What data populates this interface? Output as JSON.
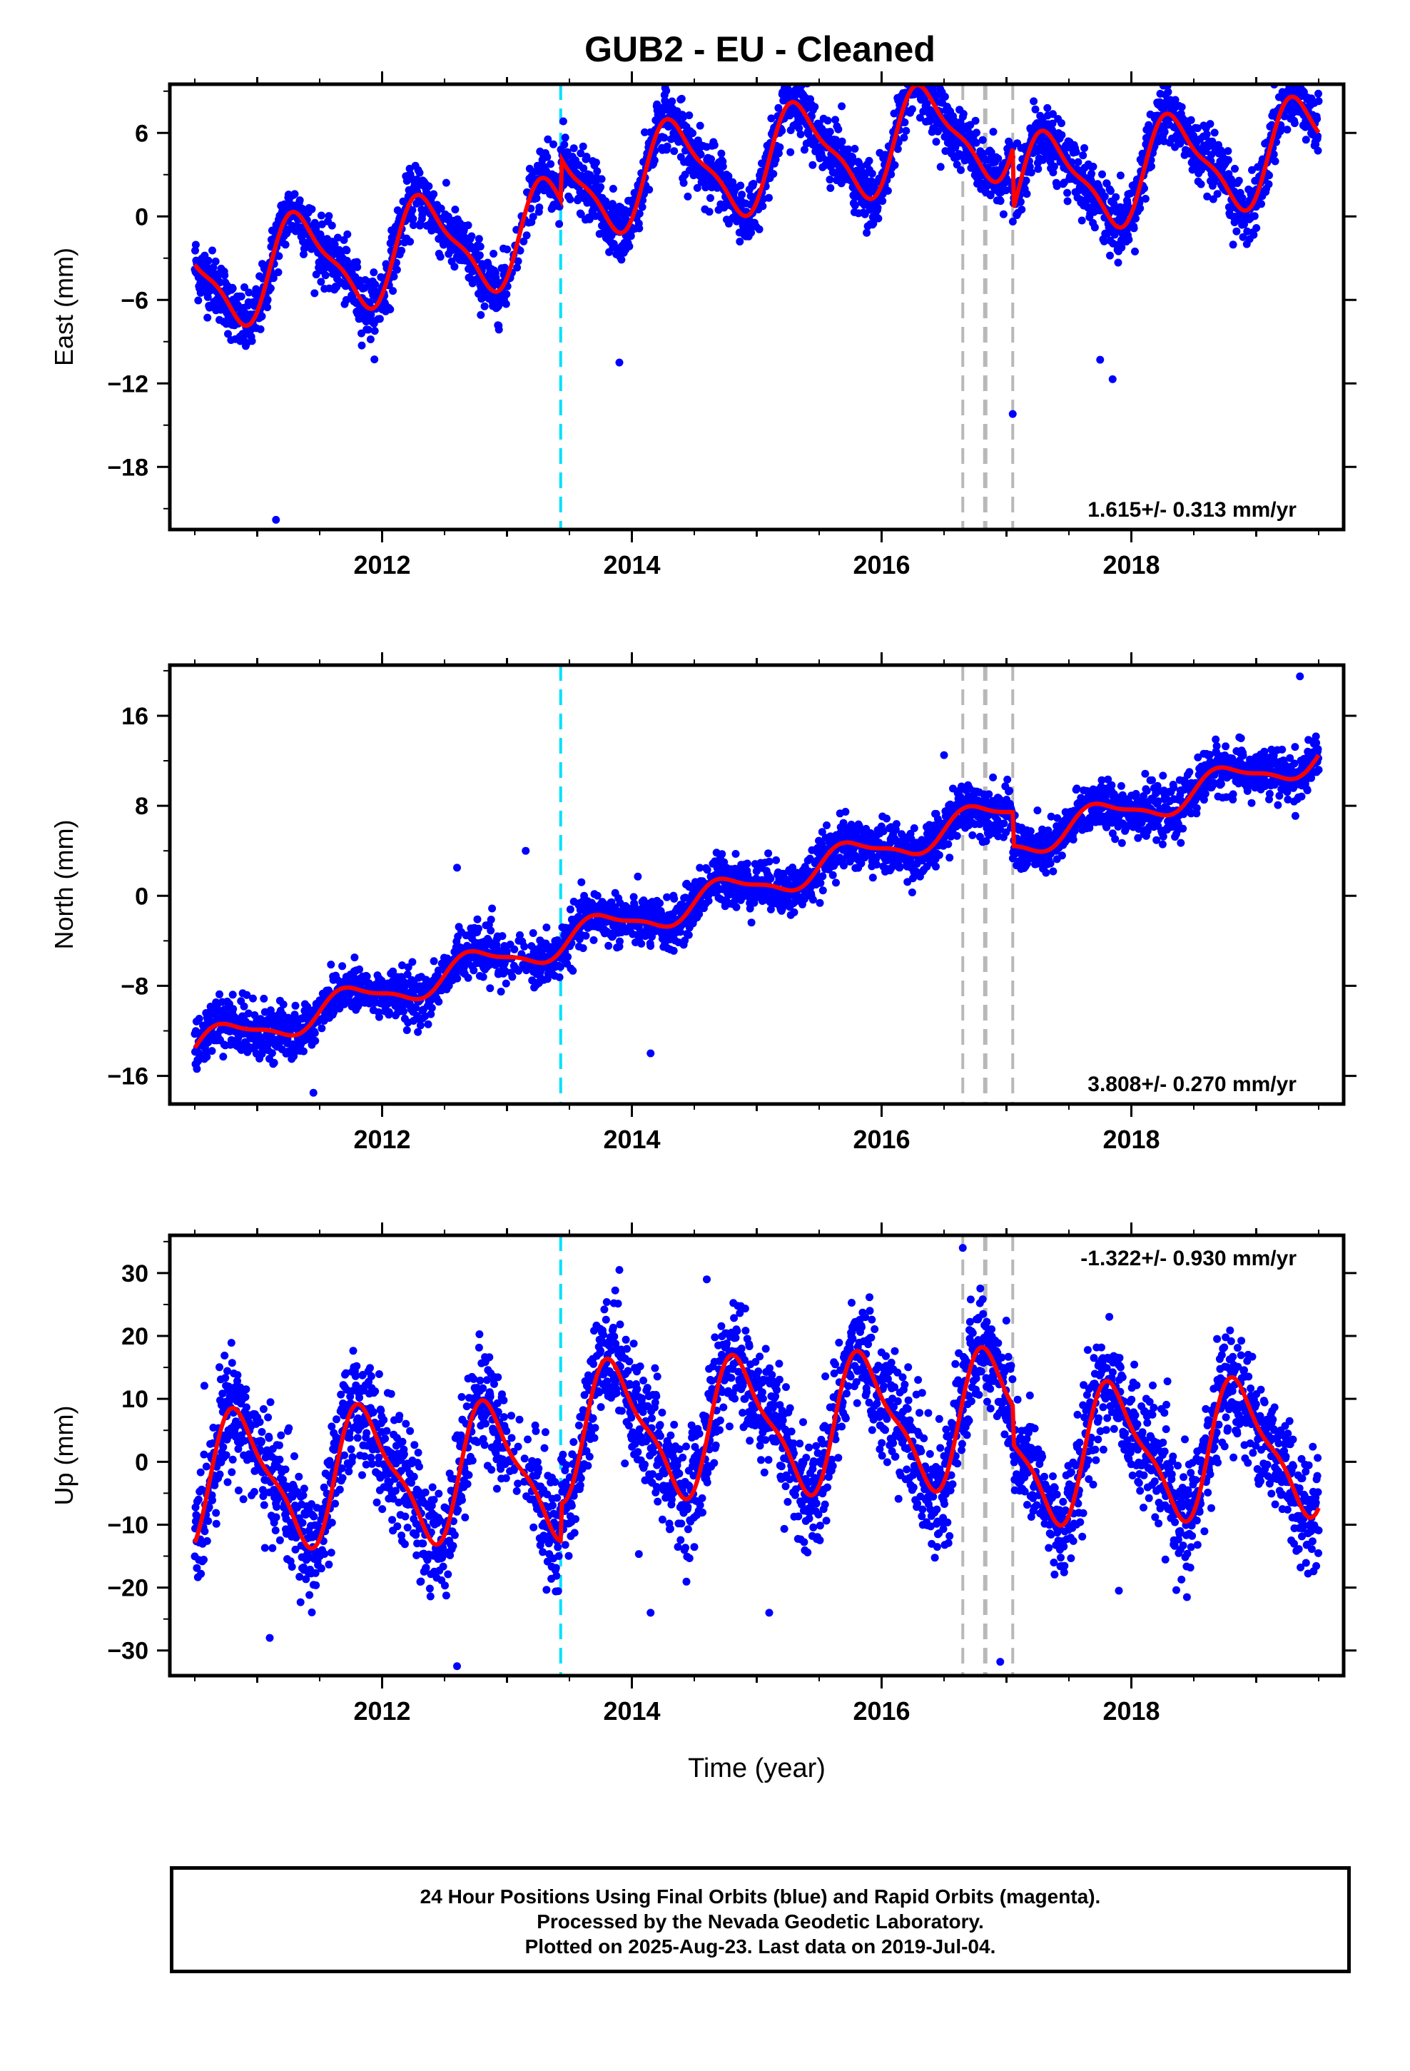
{
  "title": "GUB2  - EU - Cleaned",
  "xlabel": "Time (year)",
  "x_ticks": [
    "2012",
    "2014",
    "2016",
    "2018"
  ],
  "colors": {
    "data": "#0000ff",
    "model": "#ff0000",
    "antenna_event": "#00e0ff",
    "other_event": "#b8b8b8"
  },
  "chart_data": [
    {
      "type": "scatter",
      "name": "east",
      "ylabel": "East (mm)",
      "ylim": [
        -22.5,
        9.5
      ],
      "yticks": [
        6,
        0,
        -6,
        -12,
        -18
      ],
      "xlim": [
        2010.3,
        2019.7
      ],
      "rate_label": "1.615+/- 0.313 mm/yr",
      "model": {
        "trend_start": -4.5,
        "trend_end": 6.5,
        "annual_amp": 3.4,
        "annual_phase": 0.1,
        "offset_2013_45": 3.0,
        "offset_2017_05": -4.5,
        "noise": 1.1
      },
      "outliers": [
        [
          2011.15,
          -21.8
        ],
        [
          2017.05,
          -14.2
        ],
        [
          2017.85,
          -11.7
        ],
        [
          2013.9,
          -10.5
        ],
        [
          2017.75,
          -10.3
        ],
        [
          2016.4,
          8.7
        ]
      ]
    },
    {
      "type": "scatter",
      "name": "north",
      "ylabel": "North (mm)",
      "ylim": [
        -18.5,
        20.5
      ],
      "yticks": [
        16,
        8,
        0,
        -8,
        -16
      ],
      "xlim": [
        2010.3,
        2019.7
      ],
      "rate_label": "3.808+/- 0.270 mm/yr",
      "model": {
        "trend_start": -13.5,
        "trend_end": 15.5,
        "annual_amp": 1.3,
        "annual_phase": 0.5,
        "offset_2013_45": 0.0,
        "offset_2017_05": -3.0,
        "noise": 1.1
      },
      "outliers": [
        [
          2011.45,
          -17.5
        ],
        [
          2013.15,
          4.0
        ],
        [
          2014.15,
          -14.0
        ],
        [
          2016.5,
          12.5
        ],
        [
          2019.35,
          19.5
        ],
        [
          2012.6,
          2.5
        ]
      ]
    },
    {
      "type": "scatter",
      "name": "up",
      "ylabel": "Up (mm)",
      "ylim": [
        -34,
        36
      ],
      "yticks": [
        30,
        20,
        10,
        0,
        -10,
        -20,
        -30
      ],
      "xlim": [
        2010.3,
        2019.7
      ],
      "rate_label": "-1.322+/- 0.930 mm/yr",
      "model": {
        "trend_start": -3.0,
        "trend_end": 2.5,
        "annual_amp": 10.0,
        "annual_phase": 0.62,
        "offset_2013_45": 6.0,
        "offset_2017_05": -6.0,
        "noise": 4.5
      },
      "outliers": [
        [
          2012.6,
          -32.5
        ],
        [
          2016.95,
          -31.8
        ],
        [
          2016.65,
          34.0
        ],
        [
          2013.9,
          30.5
        ],
        [
          2014.6,
          29.0
        ],
        [
          2015.1,
          -24.0
        ],
        [
          2014.15,
          -24.0
        ],
        [
          2011.1,
          -28.0
        ],
        [
          2017.9,
          -20.5
        ]
      ]
    }
  ],
  "events": {
    "antenna": [
      2013.43
    ],
    "other": [
      2016.65,
      2016.83,
      2017.05
    ]
  },
  "footer": {
    "line1": "24 Hour Positions Using Final Orbits (blue) and Rapid Orbits (magenta).",
    "line2": "Processed by the Nevada Geodetic Laboratory.",
    "line3": "Plotted on 2025-Aug-23. Last data on 2019-Jul-04."
  }
}
